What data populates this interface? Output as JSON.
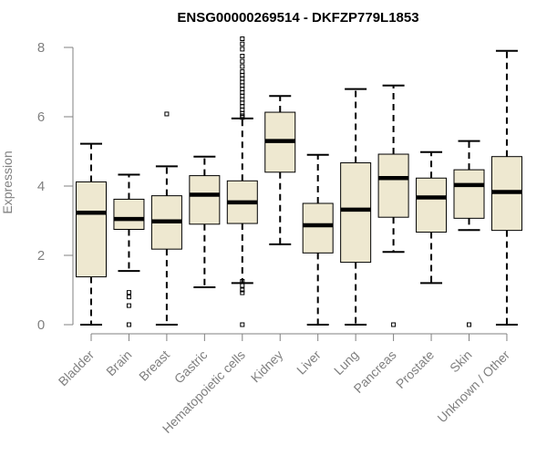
{
  "chart_data": {
    "type": "box",
    "title": "ENSG00000269514 - DKFZP779L1853",
    "ylabel": "Expression",
    "xlabel": "",
    "ylim": [
      0,
      8.3
    ],
    "yticks": [
      0,
      2,
      4,
      6,
      8
    ],
    "grid": false,
    "legend": "none",
    "colors": {
      "box_fill": "#EEE8D0",
      "stroke": "#000000",
      "axis": "#808080"
    },
    "categories": [
      "Bladder",
      "Brain",
      "Breast",
      "Gastric",
      "Hematopoietic cells",
      "Kidney",
      "Liver",
      "Lung",
      "Pancreas",
      "Prostate",
      "Skin",
      "Unknown / Other"
    ],
    "boxes": [
      {
        "category": "Bladder",
        "whisker_low": 0.0,
        "q1": 1.38,
        "median": 3.23,
        "q3": 4.12,
        "whisker_high": 5.22,
        "outliers": []
      },
      {
        "category": "Brain",
        "whisker_low": 1.55,
        "q1": 2.75,
        "median": 3.05,
        "q3": 3.62,
        "whisker_high": 4.33,
        "outliers": [
          0.0,
          0.55,
          0.8,
          0.93
        ]
      },
      {
        "category": "Breast",
        "whisker_low": 0.0,
        "q1": 2.18,
        "median": 2.98,
        "q3": 3.72,
        "whisker_high": 4.57,
        "outliers": [
          6.08
        ]
      },
      {
        "category": "Gastric",
        "whisker_low": 1.08,
        "q1": 2.9,
        "median": 3.75,
        "q3": 4.3,
        "whisker_high": 4.85,
        "outliers": []
      },
      {
        "category": "Hematopoietic cells",
        "whisker_low": 1.2,
        "q1": 2.92,
        "median": 3.53,
        "q3": 4.15,
        "whisker_high": 5.95,
        "outliers": [
          0.0,
          0.92,
          1.0,
          1.13,
          1.25,
          5.98,
          6.03,
          6.1,
          6.2,
          6.3,
          6.4,
          6.5,
          6.6,
          6.7,
          6.8,
          6.9,
          7.0,
          7.1,
          7.2,
          7.3,
          7.45,
          7.6,
          7.75,
          7.95,
          8.1,
          8.25
        ]
      },
      {
        "category": "Kidney",
        "whisker_low": 2.32,
        "q1": 4.4,
        "median": 5.3,
        "q3": 6.13,
        "whisker_high": 6.6,
        "outliers": []
      },
      {
        "category": "Liver",
        "whisker_low": 0.0,
        "q1": 2.07,
        "median": 2.87,
        "q3": 3.5,
        "whisker_high": 4.9,
        "outliers": []
      },
      {
        "category": "Lung",
        "whisker_low": 0.0,
        "q1": 1.8,
        "median": 3.32,
        "q3": 4.67,
        "whisker_high": 6.8,
        "outliers": []
      },
      {
        "category": "Pancreas",
        "whisker_low": 2.1,
        "q1": 3.1,
        "median": 4.23,
        "q3": 4.92,
        "whisker_high": 6.9,
        "outliers": [
          0.0
        ]
      },
      {
        "category": "Prostate",
        "whisker_low": 1.2,
        "q1": 2.67,
        "median": 3.67,
        "q3": 4.23,
        "whisker_high": 4.98,
        "outliers": []
      },
      {
        "category": "Skin",
        "whisker_low": 2.73,
        "q1": 3.07,
        "median": 4.03,
        "q3": 4.47,
        "whisker_high": 5.3,
        "outliers": [
          0.0
        ]
      },
      {
        "category": "Unknown / Other",
        "whisker_low": 0.0,
        "q1": 2.72,
        "median": 3.83,
        "q3": 4.85,
        "whisker_high": 7.9,
        "outliers": []
      }
    ]
  }
}
